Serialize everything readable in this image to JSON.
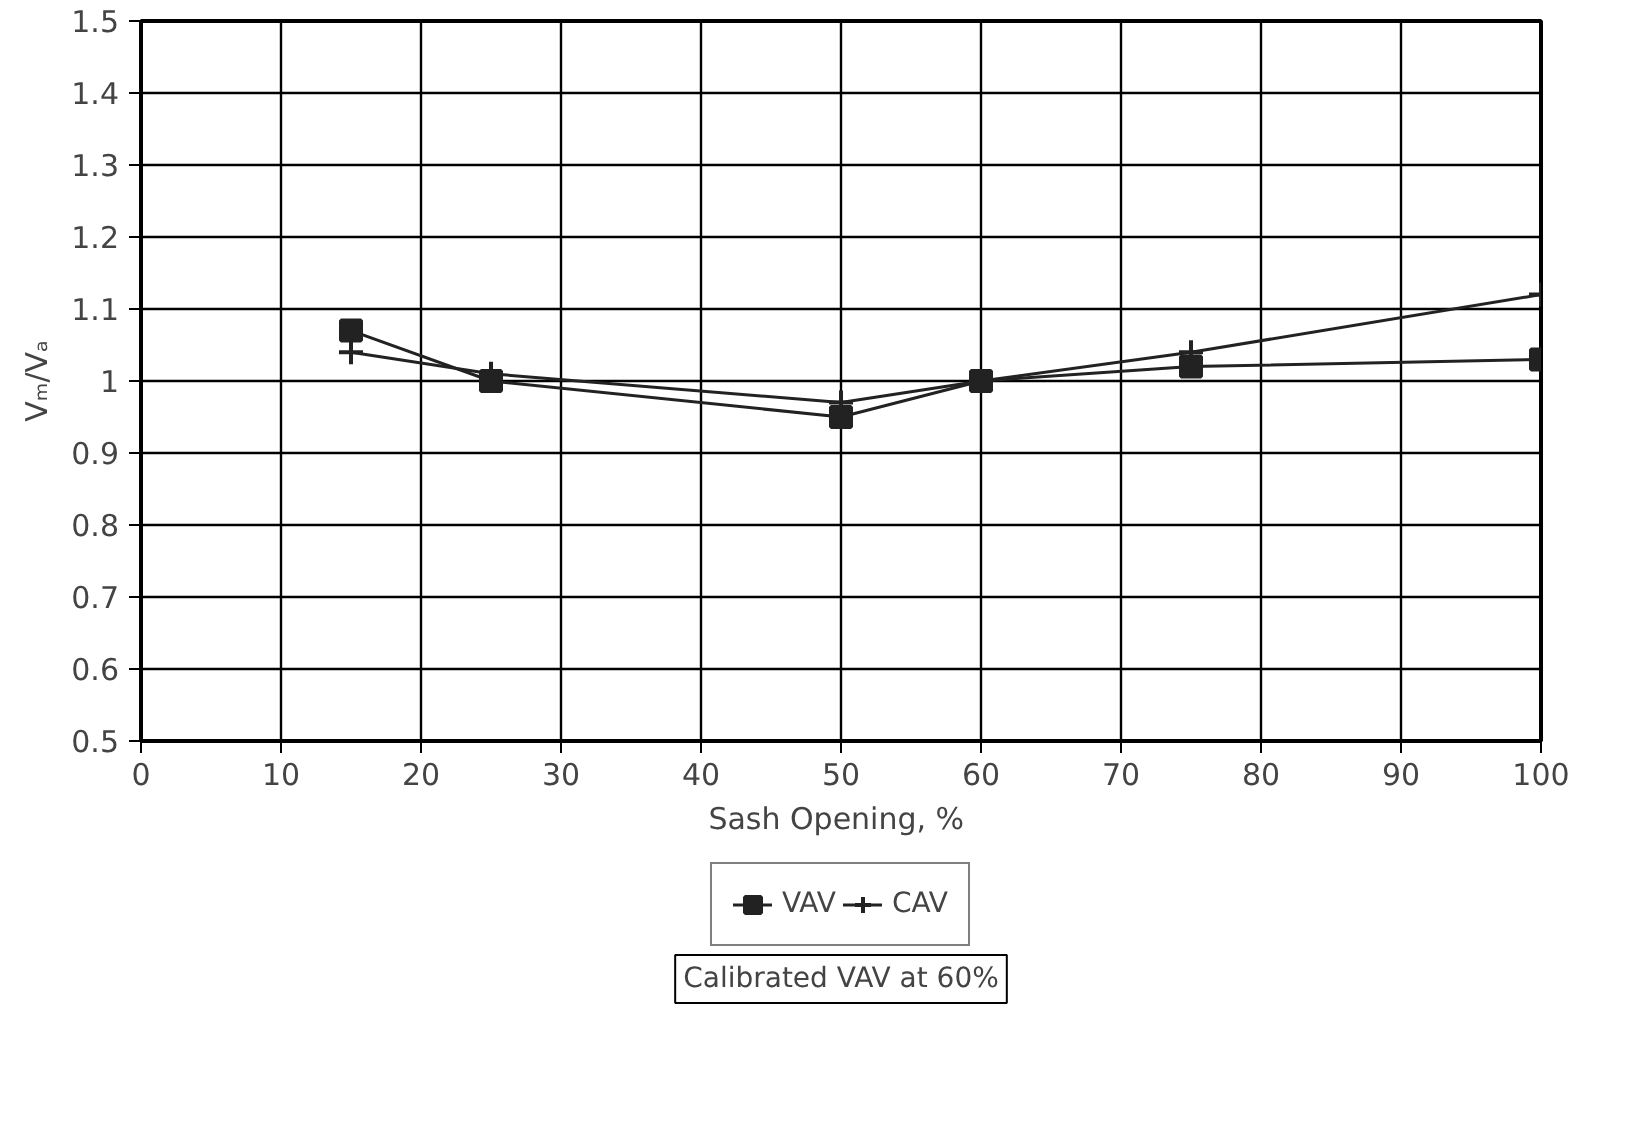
{
  "chart_data": {
    "type": "line",
    "xlabel": "Sash Opening,  %",
    "ylabel": "Vₘ/Vₐ",
    "x": [
      15,
      25,
      50,
      60,
      75,
      100
    ],
    "series": [
      {
        "name": "VAV",
        "color": "#222222",
        "marker": "square",
        "values": [
          1.07,
          1.0,
          0.95,
          1.0,
          1.02,
          1.03
        ]
      },
      {
        "name": "CAV",
        "color": "#222222",
        "marker": "cross",
        "values": [
          1.04,
          1.01,
          0.97,
          1.0,
          1.04,
          1.12
        ]
      }
    ],
    "xlim": [
      0,
      100
    ],
    "xticks": [
      0,
      10,
      20,
      30,
      40,
      50,
      60,
      70,
      80,
      90,
      100
    ],
    "ylim": [
      0.5,
      1.5
    ],
    "yticks": [
      0.5,
      0.6,
      0.7,
      0.8,
      0.9,
      1,
      1.1,
      1.2,
      1.3,
      1.4,
      1.5
    ],
    "grid": true,
    "legend": "bottom",
    "line_style": "solid",
    "annotations": [
      "Calibrated VAV at 60%"
    ]
  }
}
